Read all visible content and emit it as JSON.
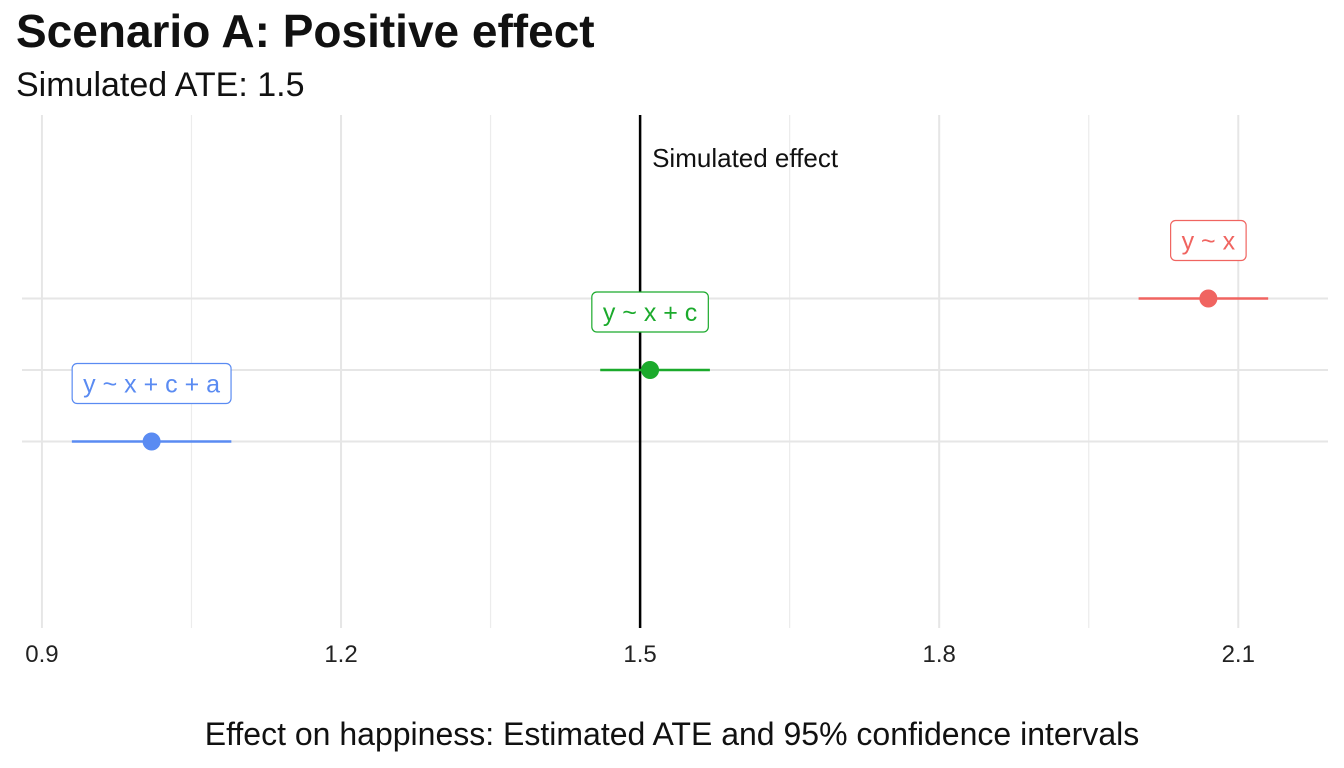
{
  "chart_data": {
    "type": "scatter",
    "title": "Scenario A: Positive effect",
    "subtitle": "Simulated ATE: 1.5",
    "xlabel": "Effect on happiness: Estimated ATE and 95% confidence intervals",
    "ylabel": "",
    "xlim": [
      0.88,
      2.19
    ],
    "x_ticks": [
      0.9,
      1.2,
      1.5,
      1.8,
      2.1
    ],
    "x_tick_labels": [
      "0.9",
      "1.2",
      "1.5",
      "1.8",
      "2.1"
    ],
    "grid": true,
    "reference_line": {
      "x": 1.5,
      "label": "Simulated effect"
    },
    "series": [
      {
        "name": "y ~ x + c + a",
        "estimate": 1.01,
        "ci": [
          0.93,
          1.09
        ],
        "color": "#5A8BF2"
      },
      {
        "name": "y ~ x + c",
        "estimate": 1.51,
        "ci": [
          1.46,
          1.57
        ],
        "color": "#1BAA2C"
      },
      {
        "name": "y ~ x",
        "estimate": 2.07,
        "ci": [
          2.0,
          2.13
        ],
        "color": "#F06460"
      }
    ]
  }
}
